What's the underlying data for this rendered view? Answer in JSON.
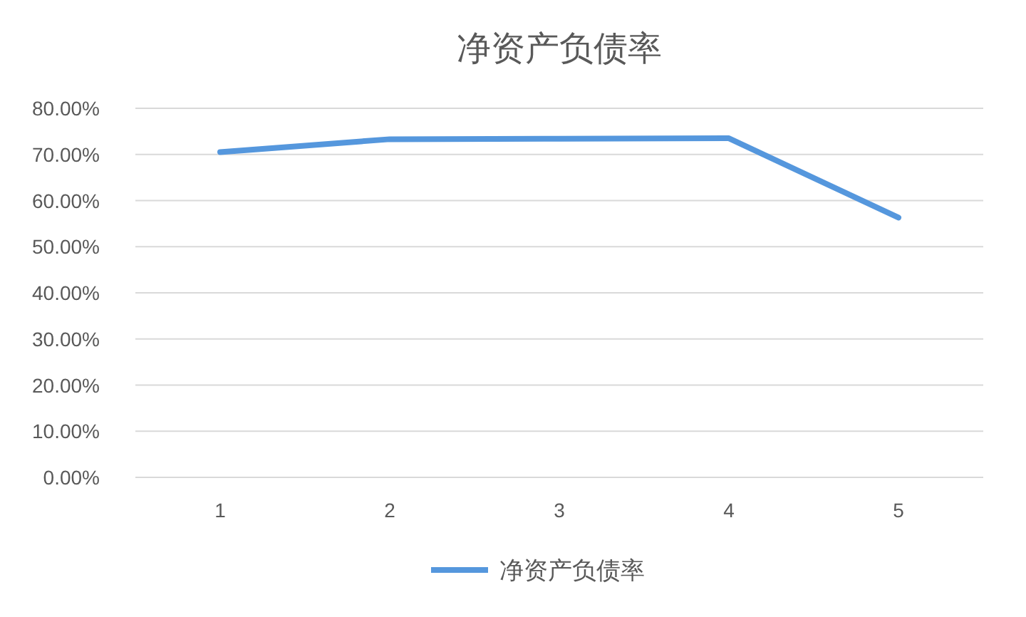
{
  "chart_data": {
    "type": "line",
    "title": "净资产负债率",
    "categories": [
      "1",
      "2",
      "3",
      "4",
      "5"
    ],
    "series": [
      {
        "name": "净资产负债率",
        "color": "#5597dd",
        "values": [
          70.5,
          73.3,
          73.4,
          73.5,
          56.3
        ]
      }
    ],
    "ylim": [
      0,
      80
    ],
    "yticks": [
      {
        "value": 0,
        "label": "0.00%"
      },
      {
        "value": 10,
        "label": "10.00%"
      },
      {
        "value": 20,
        "label": "20.00%"
      },
      {
        "value": 30,
        "label": "30.00%"
      },
      {
        "value": 40,
        "label": "40.00%"
      },
      {
        "value": 50,
        "label": "50.00%"
      },
      {
        "value": 60,
        "label": "60.00%"
      },
      {
        "value": 70,
        "label": "70.00%"
      },
      {
        "value": 80,
        "label": "80.00%"
      }
    ],
    "grid": "y",
    "legend": "bottom",
    "marker": "none",
    "line_style": "solid"
  }
}
